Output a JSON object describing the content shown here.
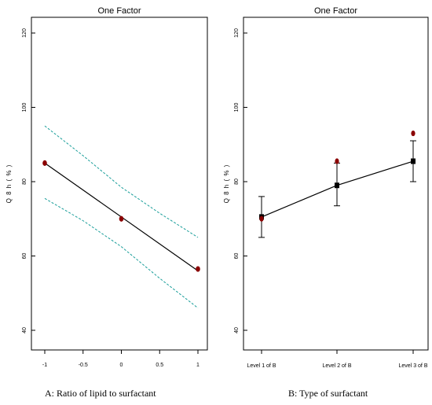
{
  "chart_data": [
    {
      "type": "line",
      "title": "One Factor",
      "ylabel": "Q 8 h  ( % )",
      "xlabel": "",
      "caption": "A: Ratio of lipid to surfactant",
      "xlim": [
        -1,
        1
      ],
      "ylim": [
        40,
        120
      ],
      "x_ticks": [
        "-1",
        "-0.5",
        "0",
        "0.5",
        "1"
      ],
      "y_ticks": [
        "40",
        "60",
        "80",
        "100",
        "120"
      ],
      "series": [
        {
          "kind": "fit",
          "color": "#000000",
          "x": [
            -1,
            1
          ],
          "y": [
            85,
            56
          ]
        },
        {
          "kind": "ci",
          "color": "#1a9e9a",
          "x": [
            -1,
            -0.5,
            0,
            0.5,
            1
          ],
          "y": [
            95.0,
            87.0,
            78.5,
            71.5,
            65.0
          ]
        },
        {
          "kind": "ci",
          "color": "#1a9e9a",
          "x": [
            -1,
            -0.5,
            0,
            0.5,
            1
          ],
          "y": [
            75.5,
            69.5,
            62.5,
            54.0,
            46.0
          ]
        },
        {
          "kind": "points",
          "color": "#8b0000",
          "x": [
            -1,
            0,
            1
          ],
          "y": [
            85.0,
            70.0,
            56.5
          ]
        }
      ]
    },
    {
      "type": "line",
      "title": "One Factor",
      "ylabel": "Q 8 h  ( % )",
      "xlabel": "",
      "caption": "B: Type of surfactant",
      "categories": [
        "Level 1 of B",
        "Level 2 of B",
        "Level 3 of B"
      ],
      "ylim": [
        40,
        120
      ],
      "y_ticks": [
        "40",
        "60",
        "80",
        "100",
        "120"
      ],
      "series": [
        {
          "kind": "mean",
          "color": "#000000",
          "values": [
            70.5,
            79.0,
            85.5
          ]
        },
        {
          "kind": "error_upper",
          "values": [
            76.0,
            85.0,
            91.0
          ]
        },
        {
          "kind": "error_lower",
          "values": [
            65.0,
            73.5,
            80.0
          ]
        },
        {
          "kind": "points",
          "color": "#8b0000",
          "values": [
            70.0,
            85.5,
            93.0
          ]
        }
      ]
    }
  ]
}
